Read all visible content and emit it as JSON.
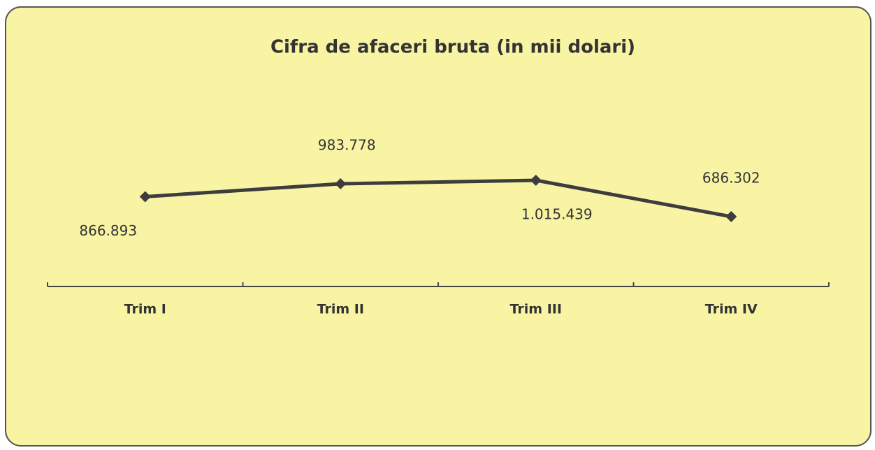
{
  "chart_data": {
    "type": "line",
    "title": "Cifra de afaceri bruta (in mii dolari)",
    "categories": [
      "Trim I",
      "Trim II",
      "Trim III",
      "Trim IV"
    ],
    "values": [
      866893,
      983778,
      1015439,
      686302
    ],
    "value_labels": [
      "866.893",
      "983.778",
      "1.015.439",
      "686.302"
    ],
    "color": "#3d3d3d"
  }
}
